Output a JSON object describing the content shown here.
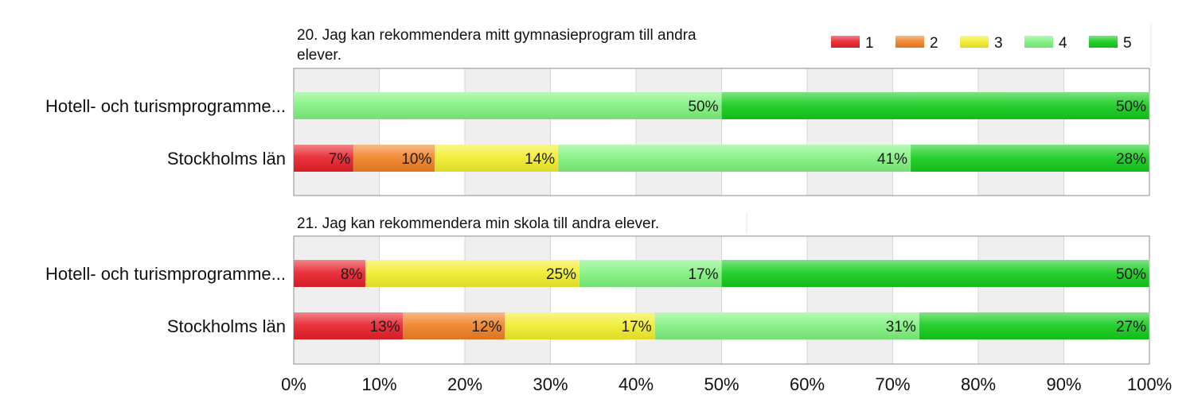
{
  "colors": {
    "1": "#e8202a",
    "2": "#f08024",
    "3": "#f2ee2c",
    "4": "#80f27e",
    "5": "#14cc1c"
  },
  "legend": [
    "1",
    "2",
    "3",
    "4",
    "5"
  ],
  "x_ticks": [
    "0%",
    "10%",
    "20%",
    "30%",
    "40%",
    "50%",
    "60%",
    "70%",
    "80%",
    "90%",
    "100%"
  ],
  "chart_data": [
    {
      "type": "bar",
      "orientation": "horizontal",
      "stacked": true,
      "title": "20. Jag kan rekommendera mitt gymnasieprogram till andra elever.",
      "categories": [
        "Hotell- och turismprogramme...",
        "Stockholms län"
      ],
      "series": [
        {
          "name": "1",
          "values": [
            0,
            7
          ],
          "labels": [
            "",
            "7%"
          ]
        },
        {
          "name": "2",
          "values": [
            0,
            9.5
          ],
          "labels": [
            "",
            "10%"
          ]
        },
        {
          "name": "3",
          "values": [
            0,
            14.4
          ],
          "labels": [
            "",
            "14%"
          ]
        },
        {
          "name": "4",
          "values": [
            50,
            41.2
          ],
          "labels": [
            "50%",
            "41%"
          ]
        },
        {
          "name": "5",
          "values": [
            50,
            27.9
          ],
          "labels": [
            "50%",
            "28%"
          ]
        }
      ],
      "xlim": [
        0,
        100
      ],
      "grid": true
    },
    {
      "type": "bar",
      "orientation": "horizontal",
      "stacked": true,
      "title": "21. Jag kan rekommendera min skola till andra elever.",
      "categories": [
        "Hotell- och turismprogramme...",
        "Stockholms län"
      ],
      "series": [
        {
          "name": "1",
          "values": [
            8.4,
            12.8
          ],
          "labels": [
            "8%",
            "13%"
          ]
        },
        {
          "name": "2",
          "values": [
            0,
            11.9
          ],
          "labels": [
            "",
            "12%"
          ]
        },
        {
          "name": "3",
          "values": [
            25,
            17.5
          ],
          "labels": [
            "25%",
            "17%"
          ]
        },
        {
          "name": "4",
          "values": [
            16.6,
            30.9
          ],
          "labels": [
            "17%",
            "31%"
          ]
        },
        {
          "name": "5",
          "values": [
            50,
            26.9
          ],
          "labels": [
            "50%",
            "27%"
          ]
        }
      ],
      "xlim": [
        0,
        100
      ],
      "grid": true
    }
  ]
}
